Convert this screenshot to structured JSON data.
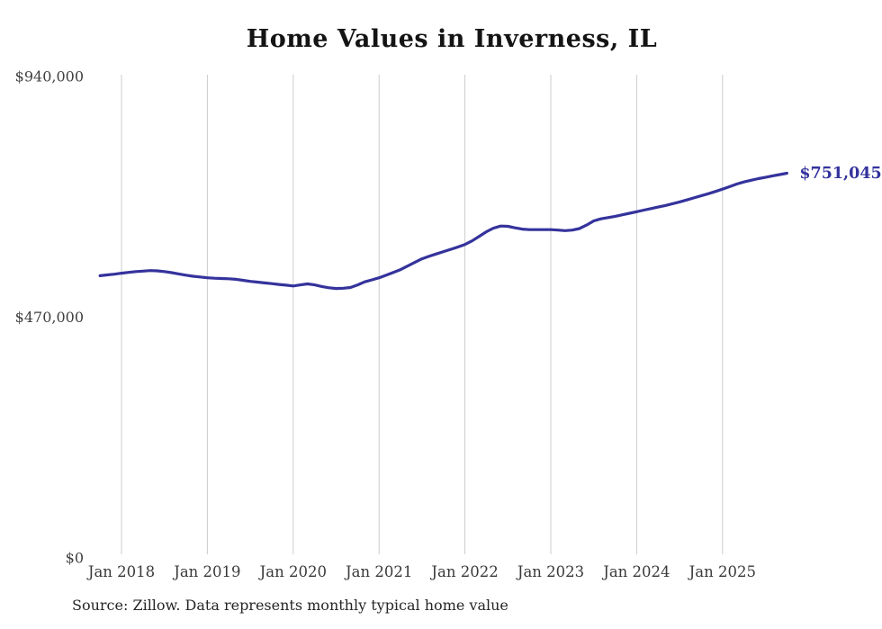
{
  "title": "Home Values in Inverness, IL",
  "source_note": "Source: Zillow. Data represents monthly typical home value",
  "colors": {
    "line": "#34339c",
    "grid": "#cccccc",
    "x_tick_text": "#3a3a3a",
    "y_tick_text": "#3f3f3f",
    "end_label_text": "#34339c",
    "title_text": "#141414",
    "background": "#ffffff"
  },
  "chart_data": {
    "type": "line",
    "title": "Home Values in Inverness, IL",
    "xlabel": "",
    "ylabel": "",
    "ylim": [
      0,
      940000
    ],
    "grid": "vertical-only",
    "legend": "none",
    "y_ticks": [
      {
        "value": 0,
        "label": "$0"
      },
      {
        "value": 470000,
        "label": "$470,000"
      },
      {
        "value": 940000,
        "label": "$940,000"
      }
    ],
    "x_ticks": [
      {
        "month": "2018-01",
        "label": "Jan 2018"
      },
      {
        "month": "2019-01",
        "label": "Jan 2019"
      },
      {
        "month": "2020-01",
        "label": "Jan 2020"
      },
      {
        "month": "2021-01",
        "label": "Jan 2021"
      },
      {
        "month": "2022-01",
        "label": "Jan 2022"
      },
      {
        "month": "2023-01",
        "label": "Jan 2023"
      },
      {
        "month": "2024-01",
        "label": "Jan 2024"
      },
      {
        "month": "2025-01",
        "label": "Jan 2025"
      }
    ],
    "series": [
      {
        "name": "Typical home value (USD)",
        "x": [
          "2017-10",
          "2017-11",
          "2017-12",
          "2018-01",
          "2018-02",
          "2018-03",
          "2018-04",
          "2018-05",
          "2018-06",
          "2018-07",
          "2018-08",
          "2018-09",
          "2018-10",
          "2018-11",
          "2018-12",
          "2019-01",
          "2019-02",
          "2019-03",
          "2019-04",
          "2019-05",
          "2019-06",
          "2019-07",
          "2019-08",
          "2019-09",
          "2019-10",
          "2019-11",
          "2019-12",
          "2020-01",
          "2020-02",
          "2020-03",
          "2020-04",
          "2020-05",
          "2020-06",
          "2020-07",
          "2020-08",
          "2020-09",
          "2020-10",
          "2020-11",
          "2020-12",
          "2021-01",
          "2021-02",
          "2021-03",
          "2021-04",
          "2021-05",
          "2021-06",
          "2021-07",
          "2021-08",
          "2021-09",
          "2021-10",
          "2021-11",
          "2021-12",
          "2022-01",
          "2022-02",
          "2022-03",
          "2022-04",
          "2022-05",
          "2022-06",
          "2022-07",
          "2022-08",
          "2022-09",
          "2022-10",
          "2022-11",
          "2022-12",
          "2023-01",
          "2023-02",
          "2023-03",
          "2023-04",
          "2023-05",
          "2023-06",
          "2023-07",
          "2023-08",
          "2023-09",
          "2023-10",
          "2023-11",
          "2023-12",
          "2024-01",
          "2024-02",
          "2024-03",
          "2024-04",
          "2024-05",
          "2024-06",
          "2024-07",
          "2024-08",
          "2024-09",
          "2024-10",
          "2024-11",
          "2024-12",
          "2025-01",
          "2025-02",
          "2025-03",
          "2025-04",
          "2025-05",
          "2025-06",
          "2025-07",
          "2025-08",
          "2025-09",
          "2025-10"
        ],
        "values": [
          551000,
          552500,
          554000,
          556000,
          557500,
          559000,
          560000,
          561000,
          560500,
          559000,
          557000,
          554500,
          552000,
          550000,
          548500,
          547000,
          546000,
          545500,
          545000,
          544000,
          542000,
          540000,
          538500,
          537000,
          535500,
          534000,
          532500,
          531000,
          533000,
          535000,
          533000,
          530000,
          527500,
          526000,
          526500,
          528000,
          533000,
          539000,
          543000,
          547000,
          552000,
          557500,
          563000,
          570000,
          577000,
          584000,
          589000,
          593500,
          598000,
          602500,
          607000,
          612000,
          619000,
          628000,
          637000,
          644000,
          648000,
          647500,
          644500,
          642000,
          641000,
          641000,
          641000,
          641000,
          640000,
          639000,
          640000,
          643000,
          650000,
          658000,
          662000,
          664500,
          667000,
          670000,
          673000,
          676000,
          679000,
          682000,
          685000,
          688000,
          691500,
          695000,
          699000,
          703000,
          707000,
          711000,
          715500,
          720000,
          725000,
          730000,
          734000,
          737500,
          740500,
          743000,
          746000,
          748500,
          751045
        ]
      }
    ],
    "last_point": {
      "month": "2025-10",
      "value": 751045,
      "label": "$751,045"
    }
  }
}
